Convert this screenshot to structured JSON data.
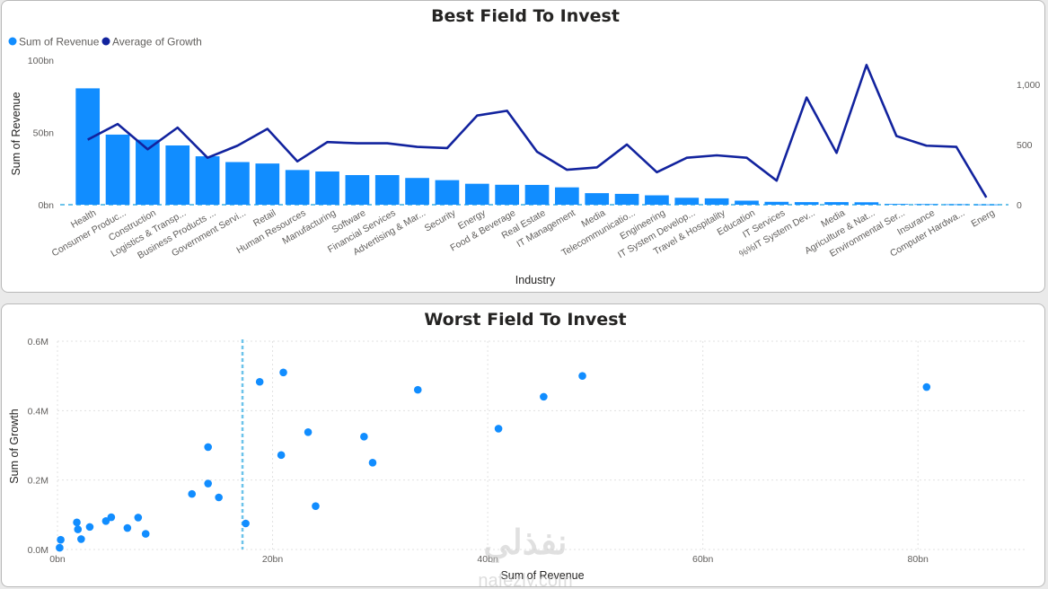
{
  "colors": {
    "revenue": "#118dff",
    "growth": "#12239e",
    "scatter": "#118dff",
    "reference_line": "#6cc3ea",
    "grid": "#e1e1e1"
  },
  "chart_data": [
    {
      "type": "bar",
      "title": "Best Field To Invest",
      "xlabel": "Industry",
      "ylabel": "Sum of Revenue",
      "legend_position": "top-left",
      "legend": [
        "Sum of Revenue",
        "Average of Growth"
      ],
      "ylim": [
        0,
        100
      ],
      "yticks": [
        "0bn",
        "50bn",
        "100bn"
      ],
      "y2lim": [
        0,
        1200
      ],
      "y2ticks": [
        "0",
        "500",
        "1,000"
      ],
      "categories": [
        "Health",
        "Consumer Produc...",
        "Construction",
        "Logistics & Transp...",
        "Business Products ...",
        "Government Servi...",
        "Retail",
        "Human Resources",
        "Manufacturing",
        "Software",
        "Financial Services",
        "Advertising & Mar...",
        "Security",
        "Energy",
        "Food & Beverage",
        "Real Estate",
        "IT Management",
        "Media",
        "Telecommunicatio...",
        "Engineering",
        "IT System Develop...",
        "Travel & Hospitality",
        "Education",
        "IT Services",
        "%%IT System Dev...",
        "Media",
        "Agriculture & Nat...",
        "Environmental Ser...",
        "Insurance",
        "Computer Hardwa...",
        "Energ"
      ],
      "series": [
        {
          "name": "Sum of Revenue",
          "values": [
            80.5,
            48.5,
            45,
            41,
            33.5,
            29.5,
            28.5,
            24,
            23,
            20.5,
            20.5,
            18.5,
            17,
            14.5,
            13.8,
            13.7,
            12,
            8,
            7.5,
            6.5,
            4.8,
            4.4,
            2.8,
            2,
            1.8,
            1.8,
            1.7,
            0.5,
            0.4,
            0.3,
            0.2
          ]
        },
        {
          "name": "Average of Growth",
          "values": [
            540,
            670,
            460,
            640,
            390,
            490,
            630,
            360,
            520,
            510,
            510,
            480,
            470,
            740,
            780,
            440,
            290,
            310,
            500,
            270,
            390,
            410,
            390,
            200,
            890,
            430,
            1160,
            570,
            490,
            480,
            60
          ]
        }
      ]
    },
    {
      "type": "scatter",
      "title": "Worst Field To Invest",
      "xlabel": "Sum of Revenue",
      "ylabel": "Sum of Growth",
      "xlim": [
        0,
        90
      ],
      "xticks": [
        "0bn",
        "20bn",
        "40bn",
        "60bn",
        "80bn"
      ],
      "ylim": [
        0,
        0.6
      ],
      "yticks": [
        "0.0M",
        "0.2M",
        "0.4M",
        "0.6M"
      ],
      "reference_line_x": 17.2,
      "points": [
        {
          "x": 0.2,
          "y": 0.005
        },
        {
          "x": 0.3,
          "y": 0.028
        },
        {
          "x": 1.8,
          "y": 0.078
        },
        {
          "x": 1.9,
          "y": 0.058
        },
        {
          "x": 2.2,
          "y": 0.03
        },
        {
          "x": 3.0,
          "y": 0.065
        },
        {
          "x": 4.5,
          "y": 0.082
        },
        {
          "x": 5.0,
          "y": 0.093
        },
        {
          "x": 6.5,
          "y": 0.062
        },
        {
          "x": 7.5,
          "y": 0.092
        },
        {
          "x": 8.2,
          "y": 0.045
        },
        {
          "x": 12.5,
          "y": 0.16
        },
        {
          "x": 14.0,
          "y": 0.19
        },
        {
          "x": 14.0,
          "y": 0.295
        },
        {
          "x": 15.0,
          "y": 0.15
        },
        {
          "x": 17.5,
          "y": 0.075
        },
        {
          "x": 18.8,
          "y": 0.483
        },
        {
          "x": 20.8,
          "y": 0.272
        },
        {
          "x": 21.0,
          "y": 0.51
        },
        {
          "x": 23.3,
          "y": 0.338
        },
        {
          "x": 24.0,
          "y": 0.125
        },
        {
          "x": 28.5,
          "y": 0.325
        },
        {
          "x": 29.3,
          "y": 0.25
        },
        {
          "x": 33.5,
          "y": 0.46
        },
        {
          "x": 41.0,
          "y": 0.348
        },
        {
          "x": 45.2,
          "y": 0.44
        },
        {
          "x": 48.8,
          "y": 0.5
        },
        {
          "x": 80.8,
          "y": 0.468
        }
      ]
    }
  ],
  "watermark": {
    "text": "نفذلي",
    "subtext": "nafezly.com"
  }
}
